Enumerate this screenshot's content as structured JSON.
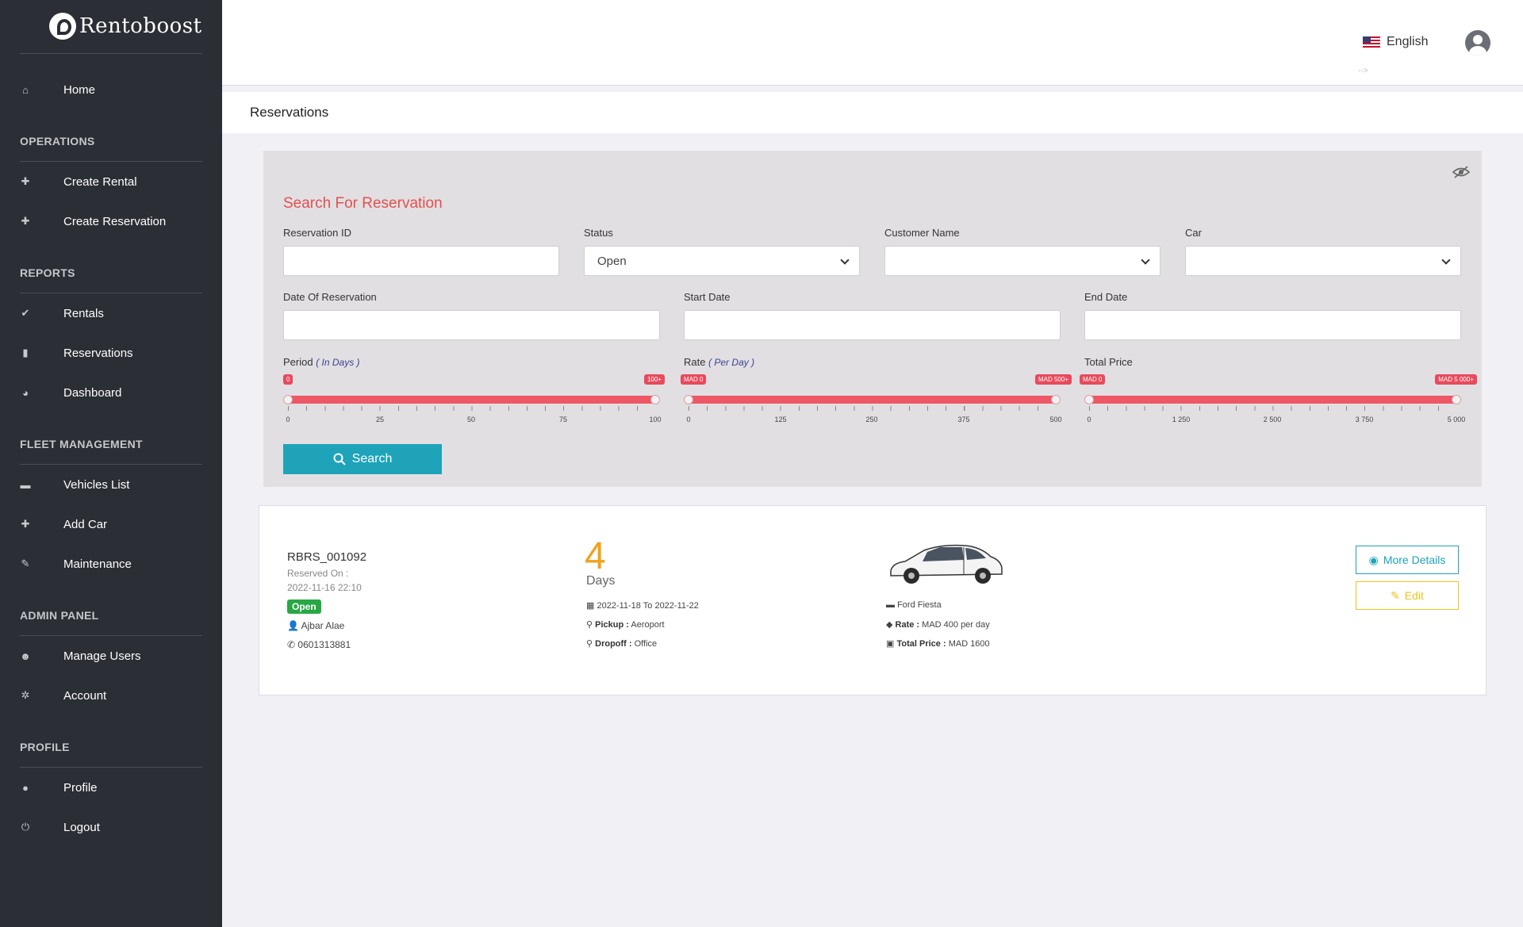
{
  "brand": {
    "name": "Rentoboost"
  },
  "sidebar": {
    "home": "Home",
    "sections": {
      "operations": "OPERATIONS",
      "reports": "REPORTS",
      "fleet": "FLEET MANAGEMENT",
      "admin": "ADMIN PANEL",
      "profile": "PROFILE"
    },
    "items": {
      "create_rental": "Create Rental",
      "create_reservation": "Create Reservation",
      "rentals": "Rentals",
      "reservations": "Reservations",
      "dashboard": "Dashboard",
      "vehicles_list": "Vehicles List",
      "add_car": "Add Car",
      "maintenance": "Maintenance",
      "manage_users": "Manage Users",
      "account": "Account",
      "profile": "Profile",
      "logout": "Logout"
    }
  },
  "header": {
    "language": "English",
    "stray_text": "-->"
  },
  "page": {
    "title": "Reservations"
  },
  "search": {
    "title": "Search For Reservation",
    "fields": {
      "reservation_id": {
        "label": "Reservation ID",
        "value": ""
      },
      "status": {
        "label": "Status",
        "value": "Open"
      },
      "customer_name": {
        "label": "Customer Name",
        "value": ""
      },
      "car": {
        "label": "Car",
        "value": ""
      },
      "date_of_reservation": {
        "label": "Date Of Reservation",
        "value": ""
      },
      "start_date": {
        "label": "Start Date",
        "value": ""
      },
      "end_date": {
        "label": "End Date",
        "value": ""
      }
    },
    "period": {
      "label": "Period",
      "unit": "( In Days )",
      "min_badge": "0",
      "max_badge": "100+",
      "ticks": [
        "0",
        "25",
        "50",
        "75",
        "100"
      ]
    },
    "rate": {
      "label": "Rate",
      "unit": "( Per Day )",
      "min_badge": "MAD 0",
      "max_badge": "MAD 500+",
      "ticks": [
        "0",
        "125",
        "250",
        "375",
        "500"
      ]
    },
    "total_price": {
      "label": "Total Price",
      "min_badge": "MAD 0",
      "max_badge": "MAD 5 000+",
      "ticks": [
        "0",
        "1 250",
        "2 500",
        "3 750",
        "5 000"
      ]
    },
    "button": "Search"
  },
  "reservation": {
    "id": "RBRS_001092",
    "reserved_on_label": "Reserved On :",
    "reserved_on": "2022-11-16 22:10",
    "status": "Open",
    "customer": "Ajbar Alae",
    "phone": "0601313881",
    "days": "4",
    "days_label": "Days",
    "dates": "2022-11-18 To 2022-11-22",
    "pickup_label": "Pickup :",
    "pickup": "Aeroport",
    "dropoff_label": "Dropoff :",
    "dropoff": "Office",
    "car": "Ford Fiesta",
    "rate_label": "Rate :",
    "rate": "MAD 400 per day",
    "total_label": "Total Price :",
    "total": "MAD 1600",
    "more_button": "More Details",
    "edit_button": "Edit"
  },
  "colors": {
    "sidebar": "#2b2e35",
    "accent_red": "#e3504d",
    "slider": "#ed5766",
    "primary": "#1ea3b9",
    "success": "#28a745",
    "warning": "#f0c419",
    "days": "#f0a21b"
  }
}
